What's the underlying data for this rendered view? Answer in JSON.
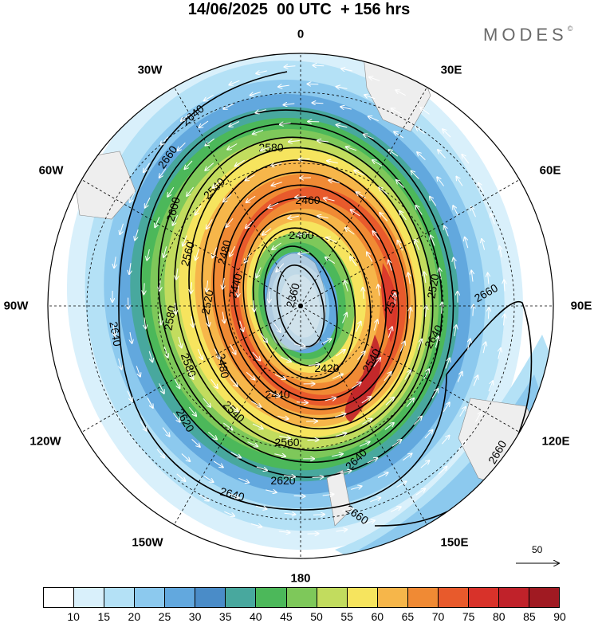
{
  "title": "14/06/2025  00 UTC  + 156 hrs",
  "logo": "MODES",
  "logo_mark": "©",
  "longitude_labels": [
    "0",
    "30E",
    "60E",
    "90E",
    "120E",
    "150E",
    "180",
    "150W",
    "120W",
    "90W",
    "60W",
    "30W"
  ],
  "vector_reference": {
    "value": "50"
  },
  "colorbar": {
    "colors": [
      "#ffffff",
      "#d9f0fb",
      "#b4e1f6",
      "#8cc9ee",
      "#62a8de",
      "#4a8cc8",
      "#48a89e",
      "#4cb85a",
      "#7ec85a",
      "#c2dc5e",
      "#f6e45e",
      "#f6b64a",
      "#f08a34",
      "#e85a2c",
      "#d8322a",
      "#c0222a",
      "#a01a22"
    ],
    "tick_labels": [
      "10",
      "15",
      "20",
      "25",
      "30",
      "35",
      "40",
      "45",
      "50",
      "55",
      "60",
      "65",
      "70",
      "75",
      "80",
      "85",
      "90"
    ]
  },
  "chart_data": {
    "type": "contour-map",
    "projection": "south polar stereographic",
    "contour_variable": "geopotential height",
    "contour_labels": [
      "2360",
      "2400",
      "2420",
      "2440",
      "2460",
      "2480",
      "2520",
      "2540",
      "2560",
      "2570",
      "2580",
      "2600",
      "2620",
      "2640",
      "2660"
    ],
    "shaded_variable": "wind speed",
    "shading_levels": [
      10,
      15,
      20,
      25,
      30,
      35,
      40,
      45,
      50,
      55,
      60,
      65,
      70,
      75,
      80,
      85,
      90
    ],
    "vectors": "wind"
  }
}
